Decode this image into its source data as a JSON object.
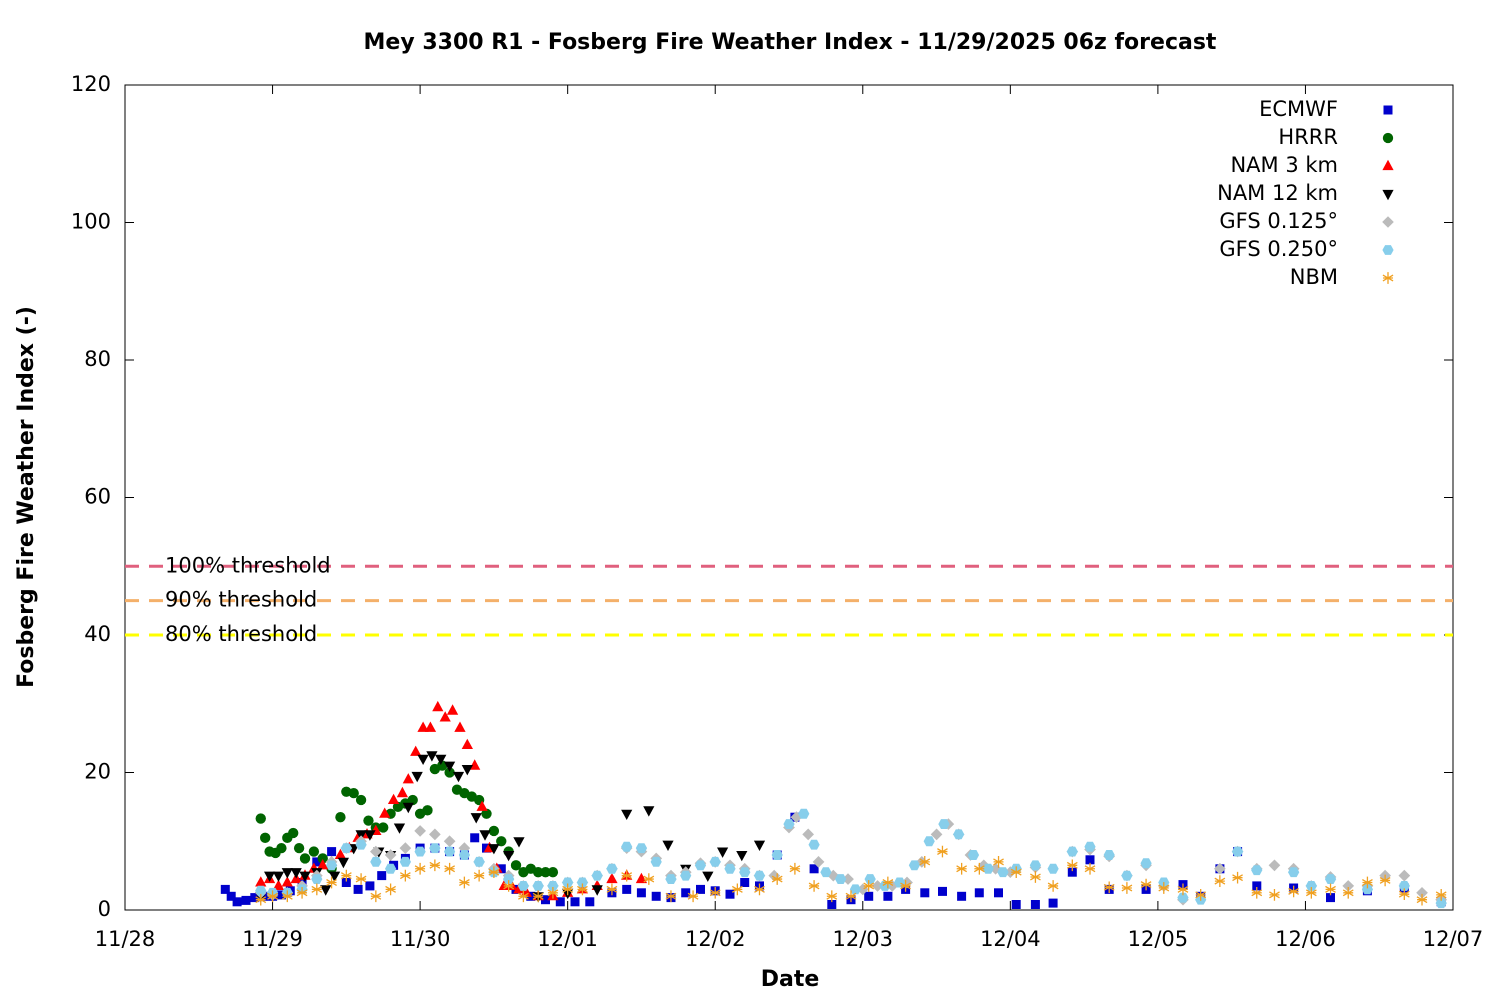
{
  "chart_data": {
    "type": "scatter",
    "title": "Mey 3300 R1 - Fosberg Fire Weather Index - 11/29/2025 06z forecast",
    "x_label": "Date",
    "y_label": "Fosberg Fire Weather Index (-)",
    "xlim": [
      0,
      9
    ],
    "xticks": [
      {
        "value": 0,
        "label": "11/28"
      },
      {
        "value": 1,
        "label": "11/29"
      },
      {
        "value": 2,
        "label": "11/30"
      },
      {
        "value": 3,
        "label": "12/01"
      },
      {
        "value": 4,
        "label": "12/02"
      },
      {
        "value": 5,
        "label": "12/03"
      },
      {
        "value": 6,
        "label": "12/04"
      },
      {
        "value": 7,
        "label": "12/05"
      },
      {
        "value": 8,
        "label": "12/06"
      },
      {
        "value": 9,
        "label": "12/07"
      }
    ],
    "ylim": [
      0,
      120
    ],
    "yticks": [
      0,
      20,
      40,
      60,
      80,
      100,
      120
    ],
    "legend": "top-right",
    "thresholds": [
      {
        "label": "100% threshold",
        "value": 50,
        "color": "#e0607e"
      },
      {
        "label": "90% threshold",
        "value": 45,
        "color": "#f4b06a"
      },
      {
        "label": "80% threshold",
        "value": 40,
        "color": "#ffff00"
      }
    ],
    "series": [
      {
        "name": "ECMWF",
        "color": "#0000cc",
        "marker": "square",
        "x": [
          0.68,
          0.72,
          0.76,
          0.82,
          0.88,
          0.94,
          1.0,
          1.06,
          1.12,
          1.2,
          1.3,
          1.4,
          1.5,
          1.58,
          1.66,
          1.74,
          1.82,
          1.9,
          2.0,
          2.1,
          2.2,
          2.3,
          2.37,
          2.45,
          2.55,
          2.65,
          2.75,
          2.85,
          2.95,
          3.05,
          3.15,
          3.3,
          3.4,
          3.5,
          3.6,
          3.7,
          3.8,
          3.9,
          4.0,
          4.1,
          4.2,
          4.3,
          4.42,
          4.54,
          4.67,
          4.79,
          4.92,
          5.04,
          5.17,
          5.29,
          5.42,
          5.54,
          5.67,
          5.79,
          5.92,
          6.04,
          6.17,
          6.29,
          6.42,
          6.54,
          6.67,
          6.92,
          7.17,
          7.29,
          7.42,
          7.54,
          7.67,
          7.92,
          8.17,
          8.42,
          8.67,
          8.92
        ],
        "values": [
          3,
          2,
          1.2,
          1.4,
          1.8,
          2,
          2,
          2.2,
          2.8,
          4,
          7,
          8.5,
          4,
          3,
          3.5,
          5,
          6.5,
          7.5,
          9,
          9,
          8.5,
          8,
          10.5,
          9,
          6,
          3,
          2,
          1.5,
          1.2,
          1.2,
          1.2,
          2.5,
          3,
          2.5,
          2,
          1.8,
          2.5,
          3,
          2.8,
          2.3,
          4,
          3.5,
          8,
          13.5,
          6,
          0.8,
          1.5,
          2,
          2,
          3,
          2.5,
          2.7,
          2,
          2.5,
          2.5,
          0.8,
          0.8,
          1,
          5.5,
          7.3,
          3,
          3,
          3.7,
          2,
          6,
          8.5,
          3.5,
          3.2,
          1.8,
          2.8,
          3.2,
          1.2
        ]
      },
      {
        "name": "HRRR",
        "color": "#006400",
        "marker": "circle",
        "x": [
          0.92,
          0.95,
          0.98,
          1.02,
          1.06,
          1.1,
          1.14,
          1.18,
          1.22,
          1.28,
          1.34,
          1.4,
          1.46,
          1.5,
          1.55,
          1.6,
          1.65,
          1.7,
          1.75,
          1.8,
          1.85,
          1.9,
          1.95,
          2.0,
          2.05,
          2.1,
          2.15,
          2.2,
          2.25,
          2.3,
          2.35,
          2.4,
          2.45,
          2.5,
          2.55,
          2.6,
          2.65,
          2.7,
          2.75,
          2.8,
          2.85,
          2.9
        ],
        "values": [
          13.3,
          10.5,
          8.5,
          8.3,
          9,
          10.5,
          11.2,
          9,
          7.5,
          8.5,
          7.5,
          6,
          13.5,
          17.2,
          17,
          16,
          13,
          12,
          12,
          14,
          15,
          15.5,
          16,
          14,
          14.5,
          20.5,
          21,
          20,
          17.5,
          17,
          16.5,
          16,
          14,
          11.5,
          10,
          8.5,
          6.5,
          5.5,
          6,
          5.5,
          5.5,
          5.5
        ]
      },
      {
        "name": "NAM 3 km",
        "color": "#ff0000",
        "marker": "triangle",
        "x": [
          0.92,
          0.98,
          1.04,
          1.1,
          1.16,
          1.22,
          1.28,
          1.34,
          1.4,
          1.46,
          1.52,
          1.58,
          1.64,
          1.7,
          1.76,
          1.82,
          1.88,
          1.92,
          1.97,
          2.02,
          2.07,
          2.12,
          2.17,
          2.22,
          2.27,
          2.32,
          2.37,
          2.42,
          2.47,
          2.52,
          2.57,
          2.62,
          2.67,
          2.72,
          2.8,
          2.9,
          3.0,
          3.1,
          3.2,
          3.3,
          3.4,
          3.5
        ],
        "values": [
          4,
          4.5,
          3.5,
          4,
          4.5,
          5,
          6,
          6.5,
          7,
          8,
          9,
          10.5,
          11,
          11.5,
          14,
          16,
          17,
          19,
          23,
          26.5,
          26.5,
          29.5,
          28,
          29,
          26.5,
          24,
          21,
          15,
          9,
          6,
          3.5,
          3.5,
          3,
          2.5,
          2,
          2,
          2.5,
          3,
          3.5,
          4.5,
          5,
          4.5
        ]
      },
      {
        "name": "NAM 12 km",
        "color": "#000000",
        "marker": "triangle-down",
        "x": [
          0.92,
          0.98,
          1.04,
          1.1,
          1.16,
          1.22,
          1.3,
          1.36,
          1.42,
          1.48,
          1.55,
          1.6,
          1.66,
          1.72,
          1.8,
          1.86,
          1.92,
          1.98,
          2.02,
          2.08,
          2.14,
          2.2,
          2.26,
          2.32,
          2.38,
          2.44,
          2.5,
          2.6,
          2.67,
          2.8,
          3.0,
          3.2,
          3.4,
          3.55,
          3.68,
          3.8,
          3.95,
          4.05,
          4.18,
          4.3
        ],
        "values": [
          2,
          5,
          5,
          5.5,
          5.5,
          5,
          5.5,
          3,
          5,
          7,
          9,
          11,
          11,
          8.5,
          8,
          12,
          15,
          19.5,
          22,
          22.5,
          22,
          21,
          19.5,
          20.5,
          13.5,
          11,
          9,
          8,
          10,
          2,
          2.5,
          3,
          14,
          14.5,
          9.5,
          6,
          5,
          8.5,
          8,
          9.5
        ]
      },
      {
        "name": "GFS 0.125°",
        "color": "#bbbbbb",
        "marker": "diamond",
        "x": [
          0.92,
          1.0,
          1.1,
          1.2,
          1.3,
          1.4,
          1.5,
          1.6,
          1.7,
          1.8,
          1.9,
          2.0,
          2.1,
          2.2,
          2.3,
          2.4,
          2.5,
          2.6,
          2.7,
          2.8,
          2.9,
          3.0,
          3.1,
          3.2,
          3.3,
          3.4,
          3.5,
          3.6,
          3.7,
          3.8,
          3.9,
          4.0,
          4.1,
          4.2,
          4.3,
          4.4,
          4.5,
          4.55,
          4.63,
          4.7,
          4.8,
          4.9,
          5.0,
          5.1,
          5.2,
          5.3,
          5.4,
          5.5,
          5.58,
          5.65,
          5.73,
          5.82,
          5.9,
          6.0,
          6.17,
          6.42,
          6.54,
          6.67,
          6.79,
          6.92,
          7.04,
          7.17,
          7.42,
          7.54,
          7.67,
          7.79,
          7.92,
          8.04,
          8.17,
          8.29,
          8.42,
          8.54,
          8.67,
          8.79,
          8.92
        ],
        "values": [
          2.5,
          2.2,
          2.5,
          3.5,
          5,
          7,
          9,
          10,
          8.5,
          8,
          9,
          11.5,
          11,
          10,
          9,
          7,
          6,
          5,
          3.5,
          3.5,
          3.5,
          4,
          4,
          5,
          6,
          9,
          8.5,
          7.5,
          5,
          5.5,
          6.8,
          7,
          6.5,
          6,
          5,
          5,
          12,
          13.5,
          11,
          7,
          5,
          4.5,
          3,
          3.5,
          3.5,
          4,
          7,
          11,
          12.5,
          11,
          8,
          6.5,
          6,
          5.5,
          6.2,
          8.5,
          8.8,
          7.8,
          5,
          6.5,
          3.5,
          1.5,
          6,
          8.5,
          6,
          6.5,
          6,
          3.5,
          4.8,
          3.5,
          3.5,
          5,
          5,
          2.5,
          1.5
        ]
      },
      {
        "name": "GFS 0.250°",
        "color": "#87ceeb",
        "marker": "hexagon",
        "x": [
          0.92,
          1.0,
          1.1,
          1.2,
          1.3,
          1.4,
          1.5,
          1.6,
          1.7,
          1.8,
          1.9,
          2.0,
          2.1,
          2.2,
          2.3,
          2.4,
          2.5,
          2.6,
          2.7,
          2.8,
          2.9,
          3.0,
          3.1,
          3.2,
          3.3,
          3.4,
          3.5,
          3.6,
          3.7,
          3.8,
          3.9,
          4.0,
          4.1,
          4.2,
          4.3,
          4.42,
          4.5,
          4.6,
          4.67,
          4.75,
          4.85,
          4.95,
          5.05,
          5.15,
          5.25,
          5.35,
          5.45,
          5.55,
          5.65,
          5.75,
          5.85,
          5.95,
          6.04,
          6.17,
          6.29,
          6.42,
          6.54,
          6.67,
          6.79,
          6.92,
          7.04,
          7.17,
          7.29,
          7.54,
          7.67,
          7.92,
          8.04,
          8.17,
          8.42,
          8.67,
          8.92
        ],
        "values": [
          2.8,
          2.5,
          2.5,
          3,
          4.5,
          6.5,
          9,
          9.5,
          7,
          6,
          7,
          8.5,
          9,
          8.5,
          8,
          7,
          5.5,
          4.5,
          3.5,
          3.5,
          3.5,
          4,
          4,
          5,
          6,
          9.2,
          9,
          7,
          4.5,
          5,
          6.5,
          7,
          6,
          5.5,
          5,
          8,
          12.5,
          14,
          9.5,
          5.5,
          4.5,
          3,
          4.5,
          3.5,
          4,
          6.5,
          10,
          12.5,
          11,
          8,
          6,
          5.5,
          6,
          6.5,
          6,
          8.5,
          9.2,
          8,
          5,
          6.8,
          4,
          1.8,
          1.5,
          8.5,
          5.8,
          5.5,
          3.5,
          4.5,
          3,
          3.5,
          1
        ]
      },
      {
        "name": "NBM",
        "color": "#f0a020",
        "marker": "asterisk",
        "x": [
          0.92,
          1.0,
          1.1,
          1.2,
          1.3,
          1.4,
          1.5,
          1.6,
          1.7,
          1.8,
          1.9,
          2.0,
          2.1,
          2.2,
          2.3,
          2.4,
          2.5,
          2.6,
          2.7,
          2.8,
          2.9,
          3.0,
          3.1,
          3.3,
          3.4,
          3.55,
          3.7,
          3.85,
          4.0,
          4.15,
          4.3,
          4.42,
          4.54,
          4.67,
          4.79,
          4.92,
          5.04,
          5.17,
          5.29,
          5.42,
          5.54,
          5.67,
          5.79,
          5.92,
          6.04,
          6.17,
          6.29,
          6.42,
          6.54,
          6.67,
          6.79,
          6.92,
          7.04,
          7.17,
          7.29,
          7.42,
          7.54,
          7.67,
          7.79,
          7.92,
          8.04,
          8.17,
          8.29,
          8.42,
          8.54,
          8.67,
          8.79,
          8.92
        ],
        "values": [
          1.5,
          2,
          2,
          2.5,
          3,
          4,
          5,
          4.5,
          2,
          3,
          5,
          6,
          6.5,
          6,
          4,
          5,
          5.5,
          3.5,
          2,
          2,
          2.5,
          3,
          3,
          3,
          5,
          4.5,
          2,
          2,
          2.5,
          3,
          3,
          4.5,
          6,
          3.5,
          2,
          2,
          3.5,
          4,
          3.5,
          7,
          8.5,
          6,
          6,
          7,
          5.5,
          4.8,
          3.5,
          6.5,
          6,
          3.3,
          3.2,
          3.7,
          3.2,
          3,
          2.2,
          4.2,
          4.7,
          2.5,
          2.2,
          2.7,
          2.5,
          3,
          2.5,
          4,
          4.3,
          2.3,
          1.5,
          2.2
        ]
      }
    ]
  }
}
